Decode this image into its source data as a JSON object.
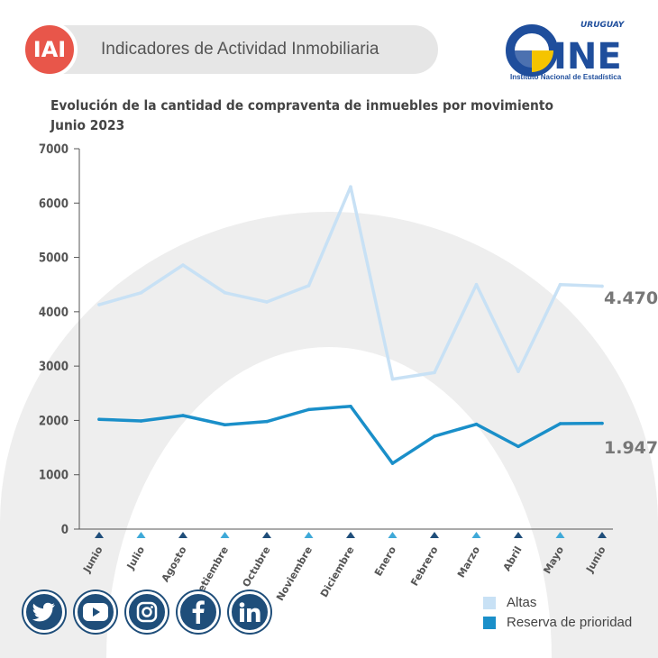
{
  "header": {
    "badge": "IAI",
    "title": "Indicadores de Actividad Inmobiliaria",
    "logo_top": "URUGUAY",
    "logo_main": "INE",
    "logo_sub": "Instituto Nacional de Estadística"
  },
  "chart_data": {
    "type": "line",
    "title": "Evolución de la cantidad de compraventa de inmuebles por movimiento",
    "subtitle": "Junio 2023",
    "categories": [
      "Junio",
      "Julio",
      "Agosto",
      "Setiembre",
      "Octubre",
      "Noviembre",
      "Diciembre",
      "Enero",
      "Febrero",
      "Marzo",
      "Abril",
      "Mayo",
      "Junio"
    ],
    "ylim": [
      0,
      7000
    ],
    "yticks": [
      0,
      1000,
      2000,
      3000,
      4000,
      5000,
      6000,
      7000
    ],
    "series": [
      {
        "name": "Altas",
        "color": "#c8e1f5",
        "values": [
          4130,
          4350,
          4860,
          4350,
          4180,
          4480,
          6300,
          2760,
          2880,
          4500,
          2900,
          4500,
          4470
        ],
        "end_label": "4.470"
      },
      {
        "name": "Reserva de prioridad",
        "color": "#1a8fc9",
        "values": [
          2020,
          1990,
          2090,
          1920,
          1980,
          2200,
          2260,
          1210,
          1710,
          1930,
          1520,
          1940,
          1947
        ],
        "end_label": "1.947"
      }
    ],
    "legend_position": "bottom-right",
    "grid": false
  },
  "social": [
    {
      "name": "twitter-icon"
    },
    {
      "name": "youtube-icon"
    },
    {
      "name": "instagram-icon"
    },
    {
      "name": "facebook-icon"
    },
    {
      "name": "linkedin-icon"
    }
  ],
  "colors": {
    "badge": "#e8564a",
    "social": "#1f4e7a",
    "marker_dark": "#1f4e7a",
    "marker_light": "#3fa9d8"
  }
}
